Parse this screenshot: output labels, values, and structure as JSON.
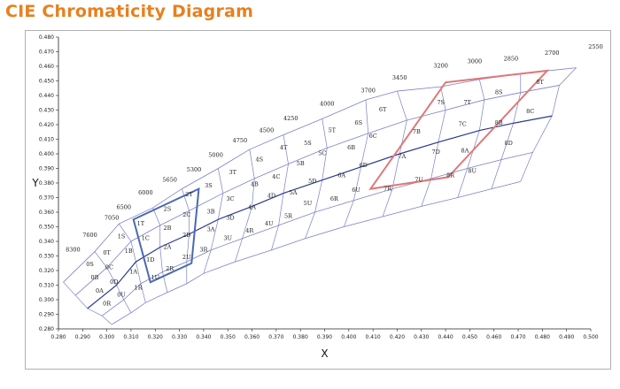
{
  "title": "CIE Chromaticity Diagram",
  "chart_data": {
    "type": "scatter",
    "xlabel": "X",
    "ylabel": "Y",
    "xlim": [
      0.28,
      0.5
    ],
    "ylim": [
      0.28,
      0.48
    ],
    "x_ticks": [
      "0.280",
      "0.290",
      "0.300",
      "0.310",
      "0.320",
      "0.330",
      "0.340",
      "0.350",
      "0.360",
      "0.370",
      "0.380",
      "0.390",
      "0.400",
      "0.410",
      "0.420",
      "0.430",
      "0.440",
      "0.450",
      "0.460",
      "0.470",
      "0.480",
      "0.490",
      "0.500"
    ],
    "y_ticks": [
      "0.280",
      "0.290",
      "0.300",
      "0.310",
      "0.320",
      "0.330",
      "0.340",
      "0.350",
      "0.360",
      "0.370",
      "0.380",
      "0.390",
      "0.400",
      "0.410",
      "0.420",
      "0.430",
      "0.440",
      "0.450",
      "0.460",
      "0.470",
      "0.480"
    ],
    "grid": false,
    "cct_labels": [
      {
        "label": "8300",
        "x": 0.286,
        "y": 0.333
      },
      {
        "label": "7600",
        "x": 0.293,
        "y": 0.343
      },
      {
        "label": "7050",
        "x": 0.302,
        "y": 0.355
      },
      {
        "label": "6500",
        "x": 0.307,
        "y": 0.362
      },
      {
        "label": "6000",
        "x": 0.316,
        "y": 0.372
      },
      {
        "label": "5650",
        "x": 0.326,
        "y": 0.381
      },
      {
        "label": "5300",
        "x": 0.336,
        "y": 0.388
      },
      {
        "label": "5000",
        "x": 0.345,
        "y": 0.398
      },
      {
        "label": "4750",
        "x": 0.355,
        "y": 0.408
      },
      {
        "label": "4500",
        "x": 0.366,
        "y": 0.415
      },
      {
        "label": "4250",
        "x": 0.376,
        "y": 0.423
      },
      {
        "label": "4000",
        "x": 0.391,
        "y": 0.433
      },
      {
        "label": "3700",
        "x": 0.408,
        "y": 0.442
      },
      {
        "label": "3450",
        "x": 0.421,
        "y": 0.451
      },
      {
        "label": "3200",
        "x": 0.438,
        "y": 0.459
      },
      {
        "label": "3000",
        "x": 0.452,
        "y": 0.462
      },
      {
        "label": "2850",
        "x": 0.467,
        "y": 0.464
      },
      {
        "label": "2700",
        "x": 0.484,
        "y": 0.468
      },
      {
        "label": "2550",
        "x": 0.502,
        "y": 0.472
      }
    ],
    "bin_labels": [
      {
        "label": "0S",
        "x": 0.293,
        "y": 0.323
      },
      {
        "label": "0T",
        "x": 0.3,
        "y": 0.331
      },
      {
        "label": "0B",
        "x": 0.295,
        "y": 0.314
      },
      {
        "label": "0C",
        "x": 0.301,
        "y": 0.321
      },
      {
        "label": "0A",
        "x": 0.297,
        "y": 0.305
      },
      {
        "label": "0D",
        "x": 0.303,
        "y": 0.311
      },
      {
        "label": "0R",
        "x": 0.3,
        "y": 0.296
      },
      {
        "label": "0U",
        "x": 0.306,
        "y": 0.302
      },
      {
        "label": "1S",
        "x": 0.306,
        "y": 0.342
      },
      {
        "label": "1T",
        "x": 0.314,
        "y": 0.351
      },
      {
        "label": "1B",
        "x": 0.309,
        "y": 0.332
      },
      {
        "label": "1C",
        "x": 0.316,
        "y": 0.341
      },
      {
        "label": "1A",
        "x": 0.311,
        "y": 0.318
      },
      {
        "label": "1D",
        "x": 0.318,
        "y": 0.326
      },
      {
        "label": "1R",
        "x": 0.313,
        "y": 0.307
      },
      {
        "label": "1U",
        "x": 0.32,
        "y": 0.314
      },
      {
        "label": "2S",
        "x": 0.325,
        "y": 0.361
      },
      {
        "label": "2T",
        "x": 0.334,
        "y": 0.371
      },
      {
        "label": "2B",
        "x": 0.325,
        "y": 0.348
      },
      {
        "label": "2C",
        "x": 0.333,
        "y": 0.357
      },
      {
        "label": "2A",
        "x": 0.325,
        "y": 0.335
      },
      {
        "label": "2D",
        "x": 0.333,
        "y": 0.343
      },
      {
        "label": "2R",
        "x": 0.326,
        "y": 0.32
      },
      {
        "label": "2U",
        "x": 0.333,
        "y": 0.328
      },
      {
        "label": "3S",
        "x": 0.342,
        "y": 0.377
      },
      {
        "label": "3T",
        "x": 0.352,
        "y": 0.386
      },
      {
        "label": "3B",
        "x": 0.343,
        "y": 0.359
      },
      {
        "label": "3C",
        "x": 0.351,
        "y": 0.368
      },
      {
        "label": "3A",
        "x": 0.343,
        "y": 0.347
      },
      {
        "label": "3D",
        "x": 0.351,
        "y": 0.355
      },
      {
        "label": "3R",
        "x": 0.34,
        "y": 0.333
      },
      {
        "label": "3U",
        "x": 0.35,
        "y": 0.341
      },
      {
        "label": "4S",
        "x": 0.363,
        "y": 0.395
      },
      {
        "label": "4T",
        "x": 0.373,
        "y": 0.403
      },
      {
        "label": "4B",
        "x": 0.361,
        "y": 0.378
      },
      {
        "label": "4C",
        "x": 0.37,
        "y": 0.383
      },
      {
        "label": "4A",
        "x": 0.36,
        "y": 0.362
      },
      {
        "label": "4D",
        "x": 0.368,
        "y": 0.37
      },
      {
        "label": "4R",
        "x": 0.359,
        "y": 0.346
      },
      {
        "label": "4U",
        "x": 0.367,
        "y": 0.351
      },
      {
        "label": "5S",
        "x": 0.383,
        "y": 0.406
      },
      {
        "label": "5T",
        "x": 0.393,
        "y": 0.415
      },
      {
        "label": "5B",
        "x": 0.38,
        "y": 0.392
      },
      {
        "label": "5C",
        "x": 0.389,
        "y": 0.399
      },
      {
        "label": "5A",
        "x": 0.377,
        "y": 0.372
      },
      {
        "label": "5D",
        "x": 0.385,
        "y": 0.38
      },
      {
        "label": "5R",
        "x": 0.375,
        "y": 0.356
      },
      {
        "label": "5U",
        "x": 0.383,
        "y": 0.365
      },
      {
        "label": "6S",
        "x": 0.404,
        "y": 0.42
      },
      {
        "label": "6T",
        "x": 0.414,
        "y": 0.429
      },
      {
        "label": "6B",
        "x": 0.401,
        "y": 0.403
      },
      {
        "label": "6C",
        "x": 0.41,
        "y": 0.411
      },
      {
        "label": "6A",
        "x": 0.397,
        "y": 0.384
      },
      {
        "label": "6D",
        "x": 0.406,
        "y": 0.391
      },
      {
        "label": "6R",
        "x": 0.394,
        "y": 0.368
      },
      {
        "label": "6U",
        "x": 0.403,
        "y": 0.374
      },
      {
        "label": "7S",
        "x": 0.438,
        "y": 0.434
      },
      {
        "label": "7T",
        "x": 0.449,
        "y": 0.434
      },
      {
        "label": "7B",
        "x": 0.428,
        "y": 0.414
      },
      {
        "label": "7C",
        "x": 0.447,
        "y": 0.419
      },
      {
        "label": "7A",
        "x": 0.422,
        "y": 0.397
      },
      {
        "label": "7D",
        "x": 0.436,
        "y": 0.4
      },
      {
        "label": "7R",
        "x": 0.416,
        "y": 0.375
      },
      {
        "label": "7U",
        "x": 0.429,
        "y": 0.381
      },
      {
        "label": "8S",
        "x": 0.462,
        "y": 0.441
      },
      {
        "label": "8T",
        "x": 0.479,
        "y": 0.448
      },
      {
        "label": "8B",
        "x": 0.462,
        "y": 0.42
      },
      {
        "label": "8C",
        "x": 0.475,
        "y": 0.428
      },
      {
        "label": "8A",
        "x": 0.448,
        "y": 0.401
      },
      {
        "label": "8D",
        "x": 0.466,
        "y": 0.406
      },
      {
        "label": "8R",
        "x": 0.442,
        "y": 0.384
      },
      {
        "label": "8U",
        "x": 0.451,
        "y": 0.387
      }
    ],
    "bin_rows": [
      [
        [
          0.282,
          0.312
        ],
        [
          0.295,
          0.333
        ],
        [
          0.305,
          0.352
        ],
        [
          0.319,
          0.363
        ],
        [
          0.331,
          0.376
        ],
        [
          0.346,
          0.39
        ],
        [
          0.359,
          0.403
        ],
        [
          0.373,
          0.413
        ],
        [
          0.389,
          0.424
        ],
        [
          0.407,
          0.437
        ],
        [
          0.42,
          0.443
        ],
        [
          0.438,
          0.446
        ],
        [
          0.454,
          0.451
        ],
        [
          0.471,
          0.455
        ],
        [
          0.494,
          0.459
        ]
      ],
      [
        [
          0.287,
          0.303
        ],
        [
          0.3,
          0.322
        ],
        [
          0.31,
          0.34
        ],
        [
          0.322,
          0.351
        ],
        [
          0.334,
          0.361
        ],
        [
          0.348,
          0.373
        ],
        [
          0.361,
          0.383
        ],
        [
          0.375,
          0.393
        ],
        [
          0.391,
          0.404
        ],
        [
          0.408,
          0.414
        ],
        [
          0.424,
          0.423
        ],
        [
          0.44,
          0.43
        ],
        [
          0.456,
          0.437
        ],
        [
          0.471,
          0.442
        ],
        [
          0.487,
          0.447
        ]
      ],
      [
        [
          0.292,
          0.294
        ],
        [
          0.304,
          0.31
        ],
        [
          0.312,
          0.326
        ],
        [
          0.322,
          0.336
        ],
        [
          0.334,
          0.345
        ],
        [
          0.346,
          0.355
        ],
        [
          0.36,
          0.364
        ],
        [
          0.373,
          0.373
        ],
        [
          0.389,
          0.382
        ],
        [
          0.405,
          0.391
        ],
        [
          0.421,
          0.4
        ],
        [
          0.437,
          0.408
        ],
        [
          0.454,
          0.416
        ],
        [
          0.468,
          0.421
        ],
        [
          0.484,
          0.426
        ]
      ],
      [
        [
          0.298,
          0.289
        ],
        [
          0.307,
          0.3
        ],
        [
          0.314,
          0.311
        ],
        [
          0.323,
          0.319
        ],
        [
          0.333,
          0.326
        ],
        [
          0.343,
          0.334
        ],
        [
          0.356,
          0.342
        ],
        [
          0.371,
          0.351
        ],
        [
          0.386,
          0.36
        ],
        [
          0.402,
          0.368
        ],
        [
          0.418,
          0.376
        ],
        [
          0.434,
          0.383
        ],
        [
          0.449,
          0.39
        ],
        [
          0.463,
          0.396
        ],
        [
          0.476,
          0.401
        ]
      ],
      [
        [
          0.302,
          0.283
        ],
        [
          0.31,
          0.291
        ],
        [
          0.316,
          0.298
        ],
        [
          0.325,
          0.305
        ],
        [
          0.333,
          0.311
        ],
        [
          0.34,
          0.318
        ],
        [
          0.353,
          0.326
        ],
        [
          0.368,
          0.334
        ],
        [
          0.382,
          0.342
        ],
        [
          0.398,
          0.35
        ],
        [
          0.414,
          0.357
        ],
        [
          0.43,
          0.364
        ],
        [
          0.445,
          0.37
        ],
        [
          0.459,
          0.376
        ],
        [
          0.471,
          0.381
        ]
      ]
    ],
    "highlight_blue": [
      [
        0.311,
        0.355
      ],
      [
        0.338,
        0.376
      ],
      [
        0.335,
        0.325
      ],
      [
        0.318,
        0.312
      ]
    ],
    "highlight_red": [
      [
        0.409,
        0.376
      ],
      [
        0.44,
        0.449
      ],
      [
        0.482,
        0.457
      ],
      [
        0.441,
        0.384
      ]
    ],
    "colors": {
      "grid_line": "#7a80c8",
      "curve": "#2b3a8f",
      "highlight_blue": "#4a69b5",
      "highlight_red": "#e07878",
      "title": "#e8801e"
    }
  }
}
